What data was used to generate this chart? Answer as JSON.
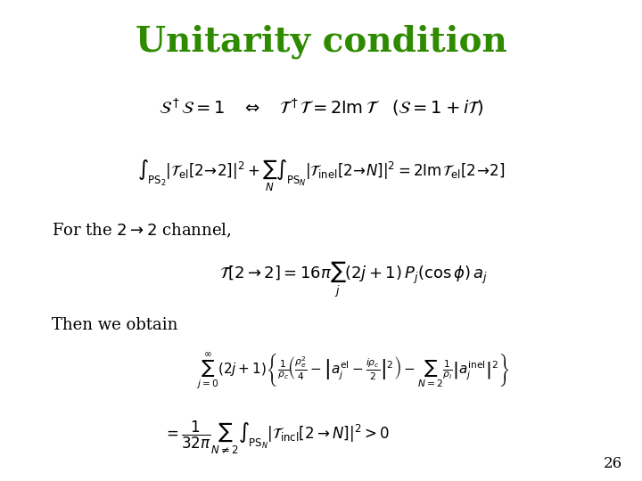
{
  "title": "Unitarity condition",
  "title_color": "#2E8B00",
  "title_fontsize": 28,
  "background_color": "#ffffff",
  "slide_number": "26",
  "eq1": "$\\mathcal{S}^\\dagger \\mathcal{S} = 1 \\quad \\Leftrightarrow \\quad \\mathcal{T}^\\dagger \\mathcal{T} = 2\\mathrm{Im}\\,\\mathcal{T} \\quad (\\mathcal{S} = 1 + i\\mathcal{T})$",
  "eq2": "$\\int_{\\mathrm{PS}_2} |\\mathcal{T}_{\\mathrm{el}}[2\\to 2]|^2 + \\sum_N \\int_{\\mathrm{PS}_N} |\\mathcal{T}_{\\mathrm{inel}}[2\\to N]|^2 = 2\\mathrm{Im}\\,\\mathcal{T}_{\\mathrm{el}}[2\\to 2]$",
  "text1": "For the $2 \\to 2$ channel,",
  "eq3": "$\\mathcal{T}[2\\to 2] = 16\\pi \\sum_j (2j+1) P_j(\\cos\\phi)\\, a_j$",
  "text2": "Then we obtain",
  "eq4": "$\\sum_{j=0}^{\\infty}(2j+1)\\left\\{\\frac{1}{\\rho_c}\\left(\\frac{\\rho_e^2}{4} - \\left|a_j^{\\mathrm{el}} - \\frac{i\\rho_c}{2}\\right|^2\\right) - \\sum_{N=2}\\frac{1}{\\rho_i}\\left|a_j^{\\mathrm{inel}}\\right|^2\\right\\}$",
  "eq5": "$= \\frac{1}{32\\pi} \\sum_{N\\neq 2} \\int_{\\mathrm{PS}_N} |\\mathcal{T}_{\\mathrm{incl}}[2\\to N]|^2 > 0$",
  "font_color": "#000000"
}
